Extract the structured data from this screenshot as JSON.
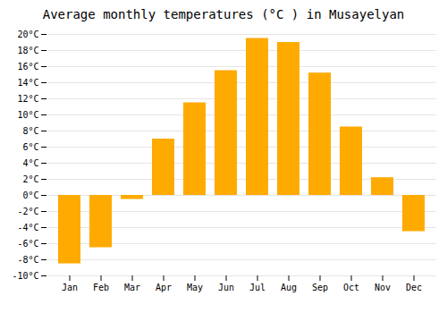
{
  "chart_data": {
    "type": "bar",
    "title": "Average monthly temperatures (°C ) in Musayelyan",
    "categories": [
      "Jan",
      "Feb",
      "Mar",
      "Apr",
      "May",
      "Jun",
      "Jul",
      "Aug",
      "Sep",
      "Oct",
      "Nov",
      "Dec"
    ],
    "values": [
      -8.5,
      -6.5,
      -0.5,
      7.0,
      11.5,
      15.5,
      19.5,
      19.0,
      15.2,
      8.5,
      2.2,
      -4.5
    ],
    "color": "#FFAA00",
    "ylim": [
      -10,
      20
    ],
    "yticks": [
      {
        "value": -10,
        "label": "-10°C"
      },
      {
        "value": -8,
        "label": "-8°C"
      },
      {
        "value": -6,
        "label": "-6°C"
      },
      {
        "value": -4,
        "label": "-4°C"
      },
      {
        "value": -2,
        "label": "-2°C"
      },
      {
        "value": 0,
        "label": "0°C"
      },
      {
        "value": 2,
        "label": "2°C"
      },
      {
        "value": 4,
        "label": "4°C"
      },
      {
        "value": 6,
        "label": "6°C"
      },
      {
        "value": 8,
        "label": "8°C"
      },
      {
        "value": 10,
        "label": "10°C"
      },
      {
        "value": 12,
        "label": "12°C"
      },
      {
        "value": 14,
        "label": "14°C"
      },
      {
        "value": 16,
        "label": "16°C"
      },
      {
        "value": 18,
        "label": "18°C"
      },
      {
        "value": 20,
        "label": "20°C"
      }
    ],
    "grid": true
  }
}
